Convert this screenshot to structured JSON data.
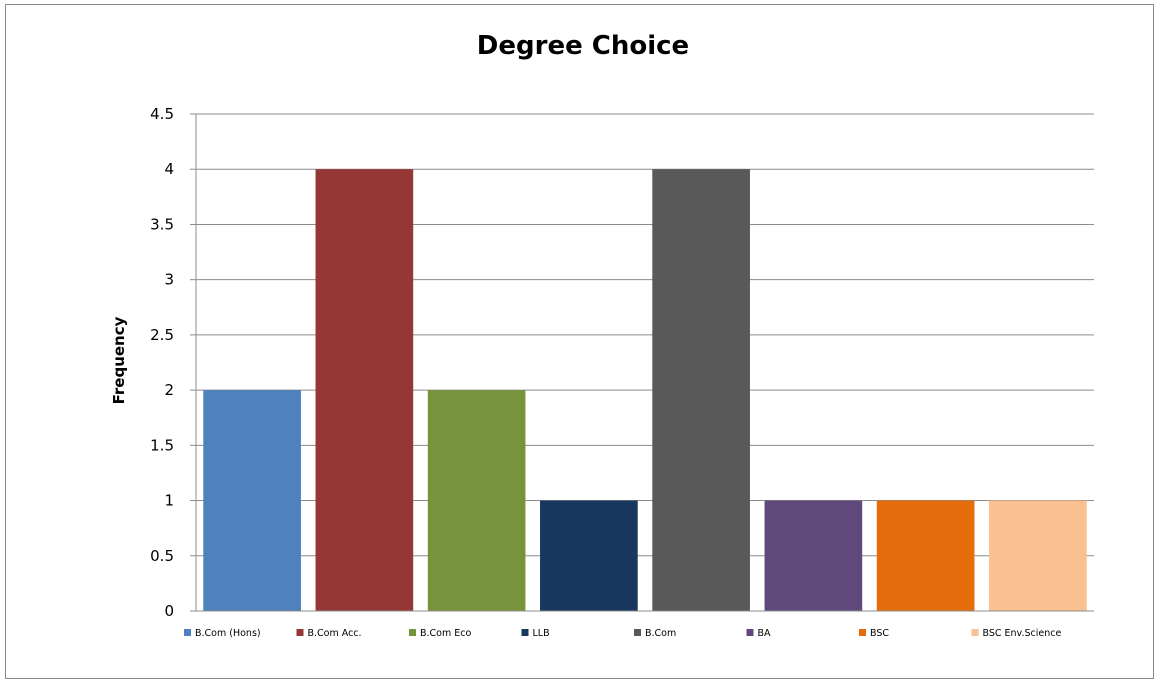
{
  "chart_data": {
    "type": "bar",
    "title": "Degree Choice",
    "xlabel": "",
    "ylabel": "Frequency",
    "ylim": [
      0,
      4.5
    ],
    "yticks": [
      "0",
      "0.5",
      "1",
      "1.5",
      "2",
      "2.5",
      "3",
      "3.5",
      "4",
      "4.5"
    ],
    "grid": true,
    "legend": "bottom",
    "categories": [
      "B.Com (Hons)",
      "B.Com Acc.",
      "B.Com Eco",
      "LLB",
      "B.Com",
      "BA",
      "BSC",
      "BSC Env.Science"
    ],
    "values": [
      2,
      4,
      2,
      1,
      4,
      1,
      1,
      1
    ],
    "colors": [
      "#4F81BD",
      "#953735",
      "#77933C",
      "#17375E",
      "#595959",
      "#604A7B",
      "#E46C0A",
      "#FAC090"
    ]
  }
}
